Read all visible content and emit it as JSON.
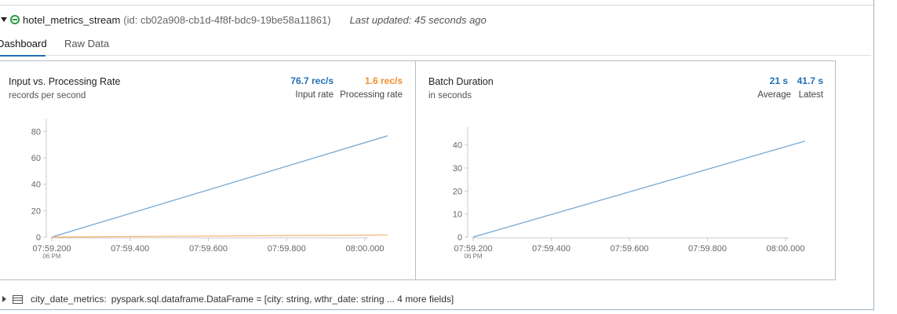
{
  "stream": {
    "name": "hotel_metrics_stream",
    "id_text": "(id: cb02a908-cb1d-4f8f-bdc9-19be58a11861)",
    "last_updated": "Last updated: 45 seconds ago",
    "status_color": "#2e9a45"
  },
  "tabs": [
    {
      "label": "Dashboard",
      "active": true
    },
    {
      "label": "Raw Data",
      "active": false
    }
  ],
  "panels": {
    "rate": {
      "title": "Input vs. Processing Rate",
      "subtitle": "records per second",
      "input_value": "76.7 rec/s",
      "input_label": "Input rate",
      "processing_value": "1.6 rec/s",
      "processing_label": "Processing rate",
      "input_color": "#1f6fb5",
      "processing_color": "#f28e2b"
    },
    "batch": {
      "title": "Batch Duration",
      "subtitle": "in seconds",
      "average_value": "21 s",
      "average_label": "Average",
      "latest_value": "41.7 s",
      "latest_label": "Latest",
      "value_color": "#1f6fb5"
    }
  },
  "chart_data": [
    {
      "type": "line",
      "title": "Input vs. Processing Rate",
      "ylabel": "records per second",
      "x": [
        "07:59.200",
        "08:00.058"
      ],
      "x_ticks": [
        "07:59.200",
        "07:59.400",
        "07:59.600",
        "07:59.800",
        "08:00.000"
      ],
      "x_first_sublabel": "06 PM",
      "y_ticks": [
        0,
        20,
        40,
        60,
        80
      ],
      "ylim": [
        0,
        85
      ],
      "series": [
        {
          "name": "Input rate",
          "values": [
            0,
            76.7
          ],
          "color": "#6fa3cf"
        },
        {
          "name": "Processing rate",
          "values": [
            0,
            1.6
          ],
          "color": "#f5b36a"
        }
      ]
    },
    {
      "type": "line",
      "title": "Batch Duration",
      "ylabel": "in seconds",
      "x": [
        "07:59.200",
        "08:00.050"
      ],
      "x_ticks": [
        "07:59.200",
        "07:59.400",
        "07:59.600",
        "07:59.800",
        "08:00.000"
      ],
      "x_first_sublabel": "06 PM",
      "y_ticks": [
        0,
        10,
        20,
        30,
        40
      ],
      "ylim": [
        0,
        45
      ],
      "series": [
        {
          "values": [
            0,
            41.7
          ],
          "color": "#6fa3cf"
        }
      ]
    }
  ],
  "variable": {
    "name": "city_date_metrics:",
    "type_text": "pyspark.sql.dataframe.DataFrame = [city: string, wthr_date: string ... 4 more fields]"
  }
}
